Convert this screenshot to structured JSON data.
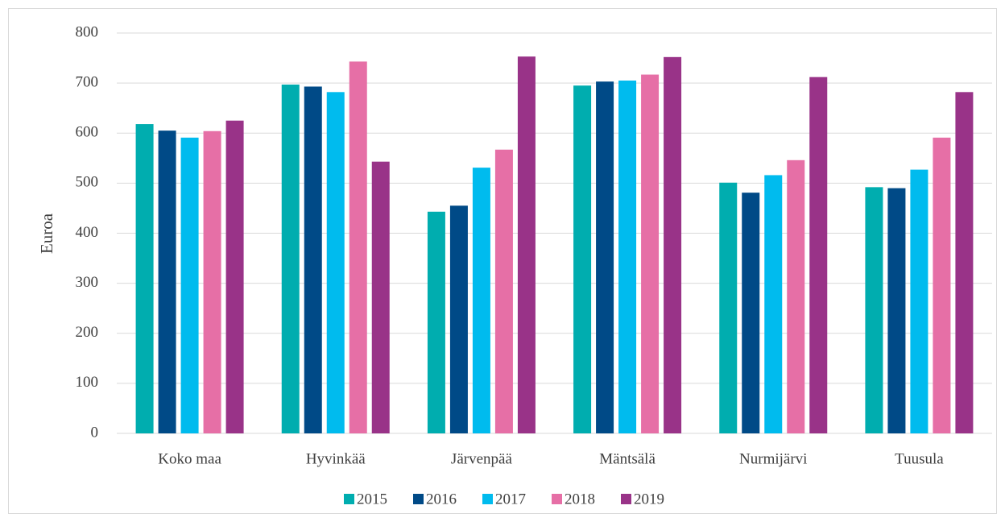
{
  "chart_data": {
    "type": "bar",
    "y_label": "Euroa",
    "categories": [
      "Koko maa",
      "Hyvinkää",
      "Järvenpää",
      "Mäntsälä",
      "Nurmijärvi",
      "Tuusula"
    ],
    "series": [
      {
        "name": "2015",
        "color": "#00adaf",
        "values": [
          618,
          697,
          443,
          695,
          501,
          492
        ]
      },
      {
        "name": "2016",
        "color": "#004a87",
        "values": [
          605,
          693,
          455,
          703,
          481,
          490
        ]
      },
      {
        "name": "2017",
        "color": "#00bbee",
        "values": [
          591,
          682,
          531,
          705,
          516,
          527
        ]
      },
      {
        "name": "2018",
        "color": "#e66fa6",
        "values": [
          604,
          743,
          567,
          717,
          546,
          591
        ]
      },
      {
        "name": "2019",
        "color": "#993388",
        "values": [
          625,
          543,
          753,
          752,
          712,
          682
        ]
      }
    ],
    "ylim": [
      0,
      800
    ],
    "yticks": [
      0,
      100,
      200,
      300,
      400,
      500,
      600,
      700,
      800
    ],
    "grid": true,
    "legend": "bottom"
  }
}
